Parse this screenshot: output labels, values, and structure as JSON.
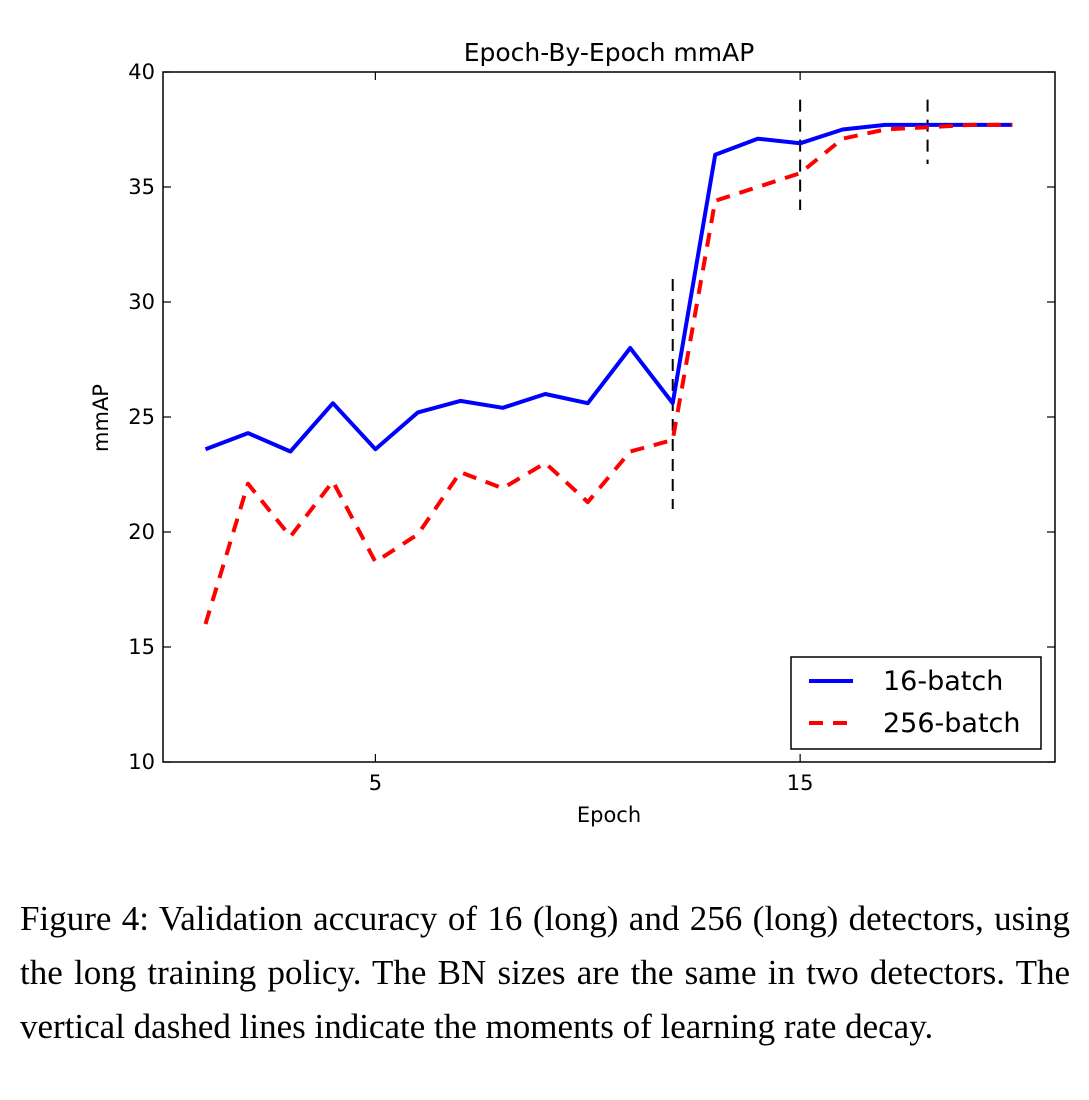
{
  "chart_data": {
    "type": "line",
    "title": "Epoch-By-Epoch mmAP",
    "xlabel": "Epoch",
    "ylabel": "mmAP",
    "xlim": [
      0,
      21
    ],
    "ylim": [
      10,
      40
    ],
    "xticks": [
      5,
      15
    ],
    "yticks": [
      10,
      15,
      20,
      25,
      30,
      35,
      40
    ],
    "grid": false,
    "legend_position": "bottom-right",
    "x": [
      1,
      2,
      3,
      4,
      5,
      6,
      7,
      8,
      9,
      10,
      11,
      12,
      13,
      14,
      15,
      16,
      17,
      18,
      19,
      20
    ],
    "series": [
      {
        "name": "16-batch",
        "color": "#0000ff",
        "style": "solid",
        "values": [
          23.6,
          24.3,
          23.5,
          25.6,
          23.6,
          25.2,
          25.7,
          25.4,
          26.0,
          25.6,
          28.0,
          25.6,
          36.4,
          37.1,
          36.9,
          37.5,
          37.7,
          37.7,
          37.7,
          37.7
        ]
      },
      {
        "name": "256-batch",
        "color": "#ff0000",
        "style": "dashed",
        "values": [
          16.0,
          22.1,
          19.8,
          22.2,
          18.7,
          19.9,
          22.6,
          21.9,
          23.0,
          21.3,
          23.5,
          24.0,
          34.4,
          35.0,
          35.6,
          37.1,
          37.5,
          37.6,
          37.7,
          37.7
        ]
      }
    ],
    "lr_decay_markers": [
      {
        "x": 12,
        "ymin": 21,
        "ymax": 31
      },
      {
        "x": 15,
        "ymin": 34,
        "ymax": 38.8
      },
      {
        "x": 18,
        "ymin": 36,
        "ymax": 38.8
      }
    ]
  },
  "caption": "Figure 4: Validation accuracy of 16 (long) and 256 (long) detectors, using the long training policy. The BN sizes are the same in two detectors. The vertical dashed lines indicate the moments of learning rate decay."
}
